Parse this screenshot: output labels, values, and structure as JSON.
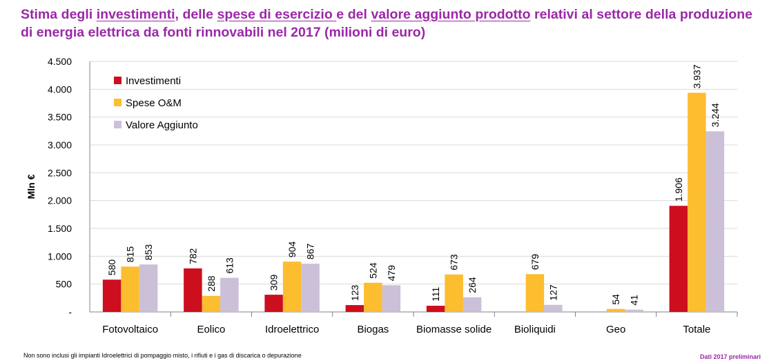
{
  "title": {
    "part1": "Stima degli ",
    "u1": "investimenti",
    "part2": ", delle ",
    "u2": "spese di esercizio ",
    "part3": "e del ",
    "u3": "valore aggiunto prodotto",
    "part4": " relativi al settore della produzione di energia elettrica da fonti rinnovabili nel 2017 (milioni di euro)"
  },
  "footnote": "Non sono inclusi gli impianti Idroelettrici di pompaggio misto, i rifiuti e i gas di discarica  o depurazione",
  "dati": "Dati 2017 preliminari",
  "chart_data": {
    "type": "bar",
    "ylabel": "Mln €",
    "ylim": [
      0,
      4500
    ],
    "yticks": [
      0,
      500,
      1000,
      1500,
      2000,
      2500,
      3000,
      3500,
      4000,
      4500
    ],
    "ytick_labels": [
      "-",
      "500",
      "1.000",
      "1.500",
      "2.000",
      "2.500",
      "3.000",
      "3.500",
      "4.000",
      "4.500"
    ],
    "grid": "horizontal",
    "legend_position": "top-left",
    "categories": [
      "Fotovoltaico",
      "Eolico",
      "Idroelettrico",
      "Biogas",
      "Biomasse solide",
      "Bioliquidi",
      "Geo",
      "Totale"
    ],
    "series": [
      {
        "name": "Investimenti",
        "color": "#cc0e1e",
        "values": [
          580,
          782,
          309,
          123,
          111,
          null,
          null,
          1906
        ],
        "labels": [
          "580",
          "782",
          "309",
          "123",
          "111",
          "",
          "",
          "1.906"
        ]
      },
      {
        "name": "Spese O&M",
        "color": "#fcbd2f",
        "values": [
          815,
          288,
          904,
          524,
          673,
          679,
          54,
          3937
        ],
        "labels": [
          "815",
          "288",
          "904",
          "524",
          "673",
          "679",
          "54",
          "3.937"
        ]
      },
      {
        "name": "Valore Aggiunto",
        "color": "#cbc0d8",
        "values": [
          853,
          613,
          867,
          479,
          264,
          127,
          41,
          3244
        ],
        "labels": [
          "853",
          "613",
          "867",
          "479",
          "264",
          "127",
          "41",
          "3.244"
        ]
      }
    ]
  }
}
